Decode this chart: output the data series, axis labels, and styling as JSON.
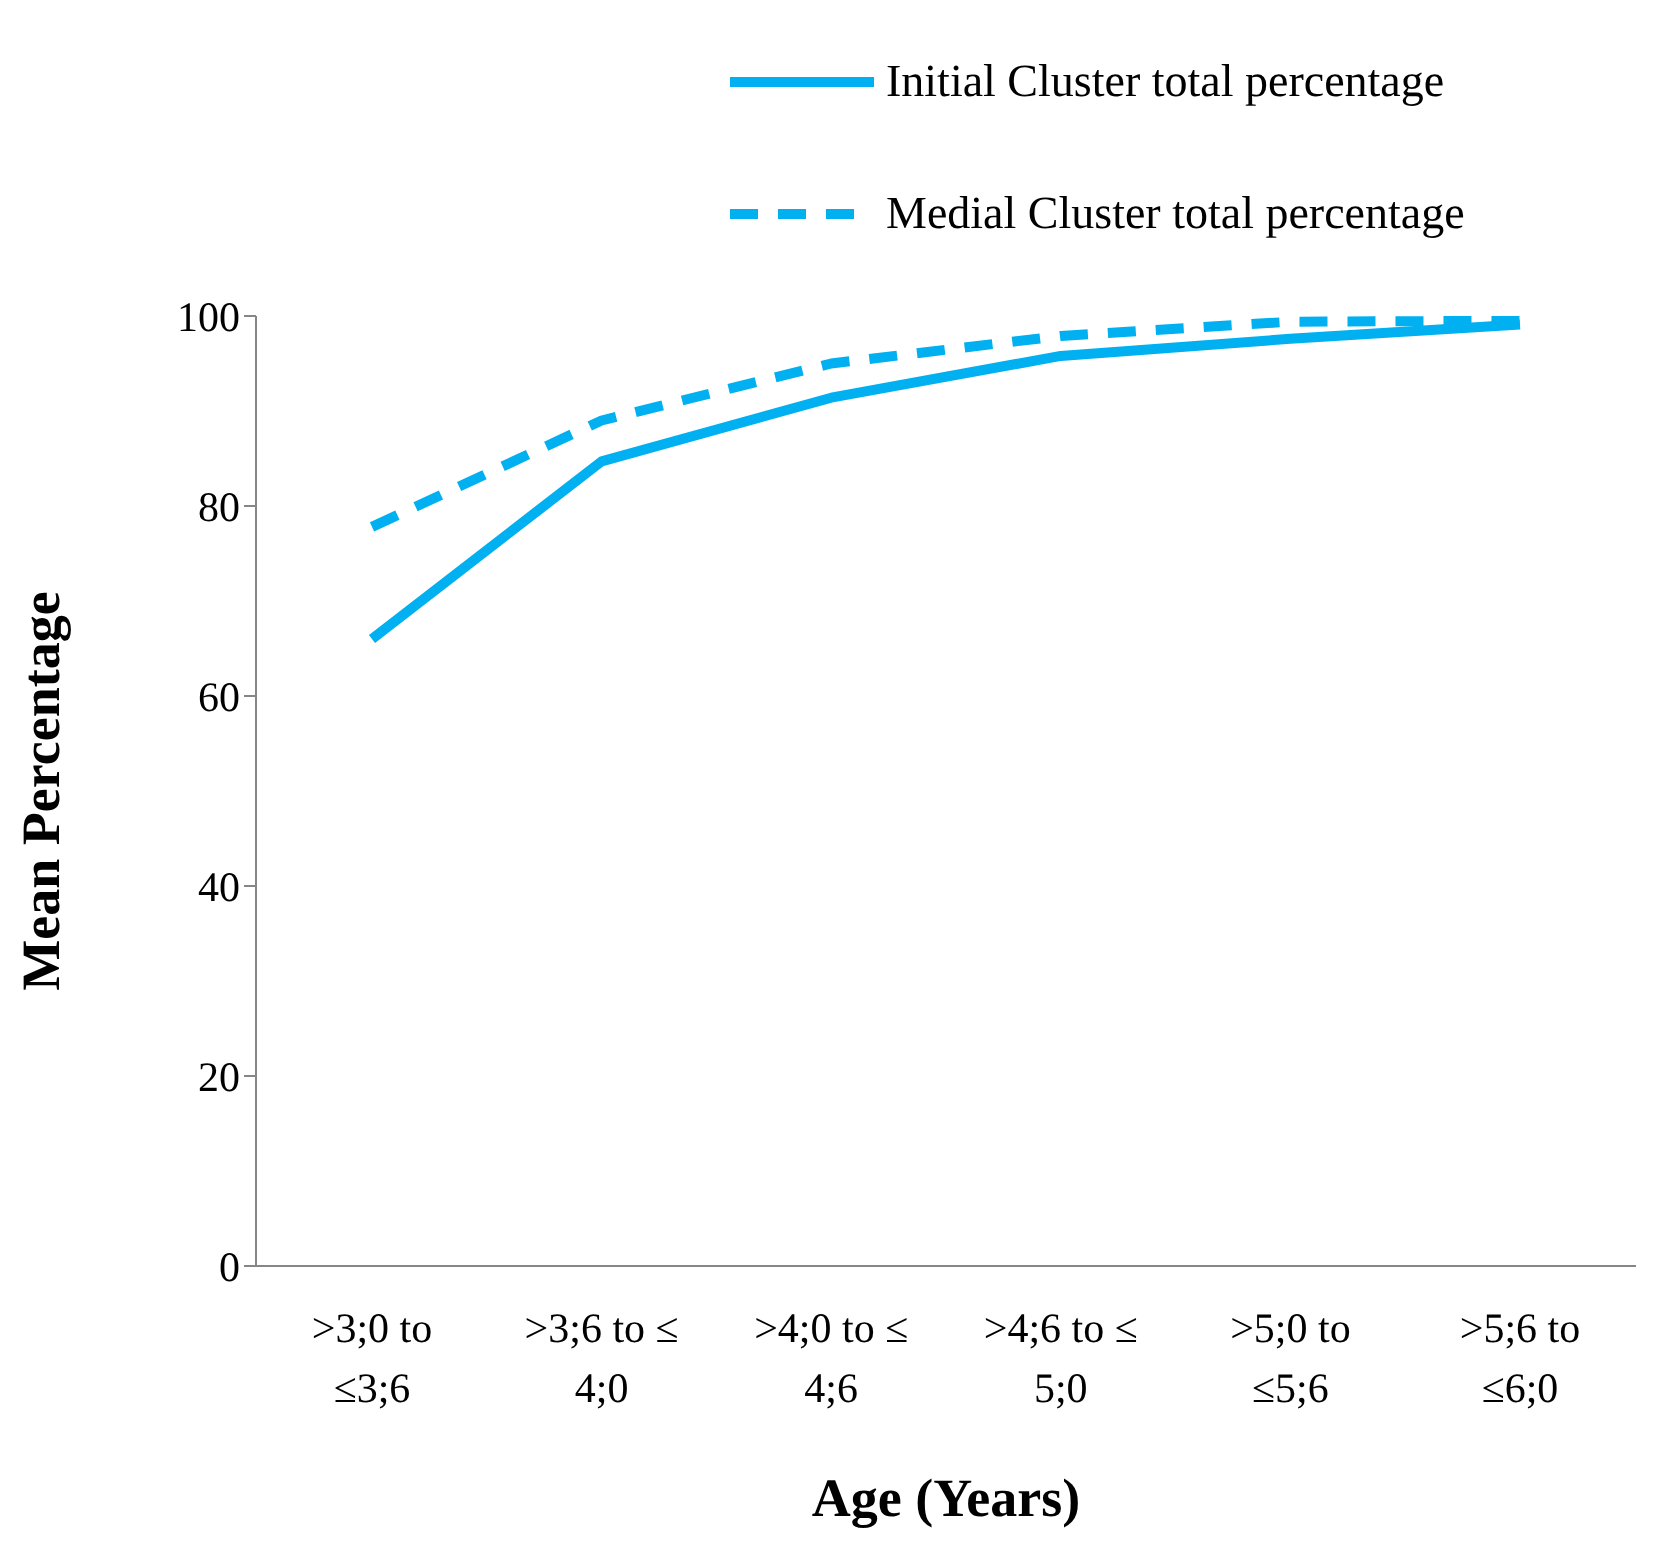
{
  "chart_data": {
    "type": "line",
    "xlabel": "Age (Years)",
    "ylabel": "Mean Percentage",
    "categories": [
      ">3;0 to ≤3;6",
      ">3;6 to ≤ 4;0",
      ">4;0 to ≤ 4;6",
      ">4;6 to ≤ 5;0",
      ">5;0 to ≤5;6",
      ">5;6 to ≤6;0"
    ],
    "series": [
      {
        "name": "Initial Cluster total percentage",
        "color": "#00b0f0",
        "line_style": "solid",
        "values": [
          66,
          84.7,
          91.4,
          95.8,
          97.6,
          99.1
        ]
      },
      {
        "name": "Medial Cluster total percentage",
        "color": "#00b0f0",
        "line_style": "dashed",
        "values": [
          77.8,
          89,
          95,
          97.9,
          99.4,
          99.5
        ]
      }
    ],
    "ylim": [
      0,
      100
    ],
    "yticks": [
      0,
      20,
      40,
      60,
      80,
      100
    ],
    "grid": false,
    "legend": "top right",
    "marker": "none"
  }
}
